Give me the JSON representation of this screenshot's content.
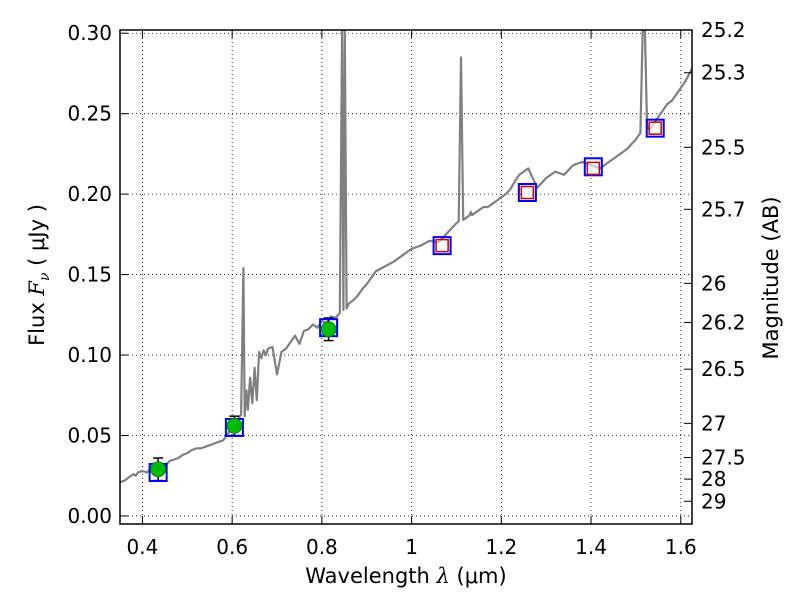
{
  "chart_data": {
    "type": "scatter",
    "title": "",
    "xlabel": {
      "prefix": "Wavelength  ",
      "symbol": "λ",
      "suffix": " (μm)"
    },
    "ylabel": {
      "prefix": "Flux  ",
      "symbol": "F",
      "subscript": "ν",
      "suffix": "  ( μJy )"
    },
    "y2label": "Magnitude (AB)",
    "xlim": [
      0.35,
      1.625
    ],
    "ylim": [
      -0.005,
      0.302
    ],
    "x_ticks": [
      0.4,
      0.6,
      0.8,
      1.0,
      1.2,
      1.4,
      1.6
    ],
    "x_tick_labels": [
      "0.4",
      "0.6",
      "0.8",
      "1",
      "1.2",
      "1.4",
      "1.6"
    ],
    "y_ticks": [
      0.0,
      0.05,
      0.1,
      0.15,
      0.2,
      0.25,
      0.3
    ],
    "y_tick_labels": [
      "0.00",
      "0.05",
      "0.10",
      "0.15",
      "0.20",
      "0.25",
      "0.30"
    ],
    "mag_ticks": [
      25.2,
      25.3,
      25.5,
      25.7,
      26,
      26.2,
      26.5,
      27,
      27.5,
      28,
      29
    ],
    "mag_tick_labels": [
      "25.2",
      "25.3",
      "25.5",
      "25.7",
      "26",
      "26.2",
      "26.5",
      "27",
      "27.5",
      "28",
      "29"
    ],
    "grid": true,
    "colors": {
      "spectrum": "#808080",
      "observed": "#00bb00",
      "model_box": "#0000ff",
      "predicted_box": "#cc0000",
      "errorbar": "#000000"
    },
    "spectrum": {
      "name": "",
      "x": [
        0.35,
        0.36,
        0.37,
        0.38,
        0.385,
        0.39,
        0.4,
        0.41,
        0.42,
        0.43,
        0.44,
        0.45,
        0.46,
        0.47,
        0.48,
        0.49,
        0.5,
        0.51,
        0.52,
        0.53,
        0.54,
        0.55,
        0.56,
        0.57,
        0.58,
        0.585,
        0.59,
        0.595,
        0.6,
        0.605,
        0.61,
        0.615,
        0.62,
        0.625,
        0.628,
        0.632,
        0.635,
        0.64,
        0.645,
        0.65,
        0.655,
        0.66,
        0.665,
        0.67,
        0.675,
        0.68,
        0.69,
        0.7,
        0.71,
        0.72,
        0.73,
        0.74,
        0.75,
        0.76,
        0.77,
        0.78,
        0.79,
        0.8,
        0.81,
        0.82,
        0.83,
        0.84,
        0.845,
        0.848,
        0.851,
        0.855,
        0.86,
        0.87,
        0.88,
        0.89,
        0.9,
        0.92,
        0.94,
        0.96,
        0.98,
        1.0,
        1.02,
        1.04,
        1.06,
        1.07,
        1.08,
        1.09,
        1.1,
        1.105,
        1.11,
        1.115,
        1.12,
        1.125,
        1.13,
        1.132,
        1.135,
        1.14,
        1.15,
        1.16,
        1.17,
        1.18,
        1.19,
        1.2,
        1.21,
        1.22,
        1.23,
        1.24,
        1.26,
        1.28,
        1.3,
        1.32,
        1.34,
        1.36,
        1.38,
        1.4,
        1.42,
        1.44,
        1.46,
        1.48,
        1.5,
        1.51,
        1.515,
        1.52,
        1.525,
        1.53,
        1.54,
        1.55,
        1.56,
        1.57,
        1.58,
        1.59,
        1.6,
        1.61,
        1.625
      ],
      "y": [
        0.021,
        0.022,
        0.024,
        0.026,
        0.025,
        0.027,
        0.028,
        0.027,
        0.03,
        0.031,
        0.032,
        0.031,
        0.034,
        0.035,
        0.036,
        0.038,
        0.039,
        0.041,
        0.042,
        0.042,
        0.043,
        0.044,
        0.045,
        0.046,
        0.047,
        0.049,
        0.051,
        0.053,
        0.055,
        0.057,
        0.059,
        0.061,
        0.063,
        0.154,
        0.062,
        0.078,
        0.066,
        0.086,
        0.07,
        0.092,
        0.072,
        0.102,
        0.098,
        0.103,
        0.1,
        0.104,
        0.105,
        0.088,
        0.102,
        0.104,
        0.108,
        0.112,
        0.107,
        0.115,
        0.116,
        0.119,
        0.117,
        0.121,
        0.12,
        0.124,
        0.123,
        0.126,
        0.302,
        0.128,
        0.302,
        0.129,
        0.132,
        0.134,
        0.137,
        0.141,
        0.144,
        0.152,
        0.155,
        0.158,
        0.162,
        0.166,
        0.168,
        0.171,
        0.17,
        0.173,
        0.176,
        0.179,
        0.182,
        0.183,
        0.285,
        0.184,
        0.185,
        0.186,
        0.187,
        0.189,
        0.187,
        0.188,
        0.19,
        0.192,
        0.192,
        0.194,
        0.196,
        0.198,
        0.2,
        0.203,
        0.208,
        0.212,
        0.216,
        0.204,
        0.21,
        0.214,
        0.212,
        0.218,
        0.22,
        0.218,
        0.216,
        0.22,
        0.224,
        0.228,
        0.234,
        0.238,
        0.302,
        0.302,
        0.242,
        0.24,
        0.244,
        0.248,
        0.252,
        0.256,
        0.258,
        0.262,
        0.266,
        0.27,
        0.278
      ]
    },
    "observed_points": {
      "x": [
        0.435,
        0.605,
        0.815
      ],
      "y": [
        0.029,
        0.056,
        0.116
      ],
      "yerr": [
        0.007,
        0.006,
        0.007
      ]
    },
    "model_boxes": {
      "x": [
        0.435,
        0.605,
        0.815,
        1.068,
        1.258,
        1.405,
        1.543
      ],
      "y": [
        0.027,
        0.055,
        0.117,
        0.168,
        0.201,
        0.217,
        0.241
      ]
    },
    "predicted_boxes": {
      "x": [
        1.068,
        1.258,
        1.405,
        1.543
      ],
      "y": [
        0.168,
        0.201,
        0.216,
        0.241
      ]
    }
  }
}
